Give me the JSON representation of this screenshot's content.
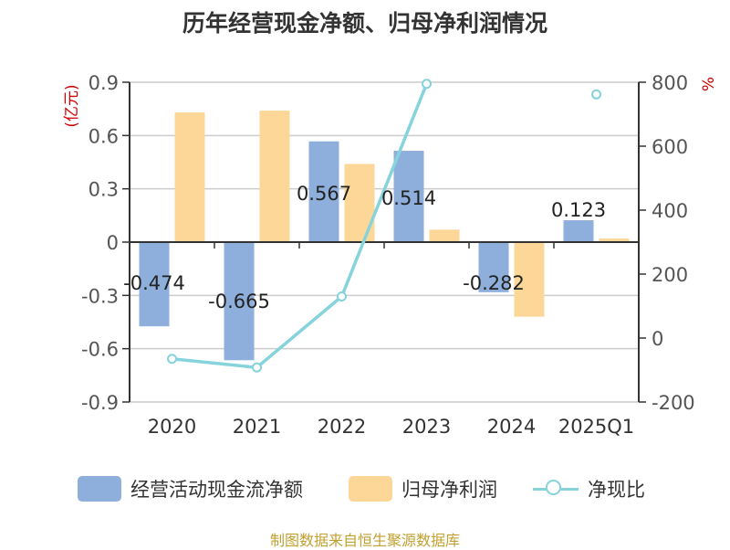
{
  "title": "历年经营现金净额、归母净利润情况",
  "source_text": "制图数据来自恒生聚源数据库",
  "colors": {
    "cash": "#8eaedb",
    "profit": "#fdd798",
    "ratio": "#86d3dc",
    "unit_red": "#cc0000",
    "axis": "#333333",
    "grid": "#cccccc"
  },
  "chart_data": {
    "type": "bar",
    "categories": [
      "2020",
      "2021",
      "2022",
      "2023",
      "2024",
      "2025Q1"
    ],
    "series": [
      {
        "name": "经营活动现金流净额",
        "type": "bar",
        "axis": "left",
        "values": [
          -0.474,
          -0.665,
          0.567,
          0.514,
          -0.282,
          0.123
        ],
        "labels": [
          "-0.474",
          "-0.665",
          "0.567",
          "0.514",
          "-0.282",
          "0.123"
        ]
      },
      {
        "name": "归母净利润",
        "type": "bar",
        "axis": "left",
        "values": [
          0.73,
          0.74,
          0.44,
          0.07,
          -0.42,
          0.02
        ]
      },
      {
        "name": "净现比",
        "type": "line",
        "axis": "right",
        "values": [
          -65,
          -92,
          130,
          795,
          null,
          762
        ]
      }
    ],
    "y_left": {
      "unit": "(亿元)",
      "ylim": [
        -0.9,
        0.9
      ],
      "ticks": [
        0.9,
        0.6,
        0.3,
        0,
        -0.3,
        -0.6,
        -0.9
      ],
      "tick_labels": [
        "0.9",
        "0.6",
        "0.3",
        "0",
        "-0.3",
        "-0.6",
        "-0.9"
      ]
    },
    "y_right": {
      "unit": "%",
      "ylim": [
        -200,
        800
      ],
      "ticks": [
        800,
        600,
        400,
        200,
        0,
        -200
      ],
      "tick_labels": [
        "800",
        "600",
        "400",
        "200",
        "0",
        "-200"
      ]
    },
    "grid": true,
    "legend_position": "bottom"
  }
}
